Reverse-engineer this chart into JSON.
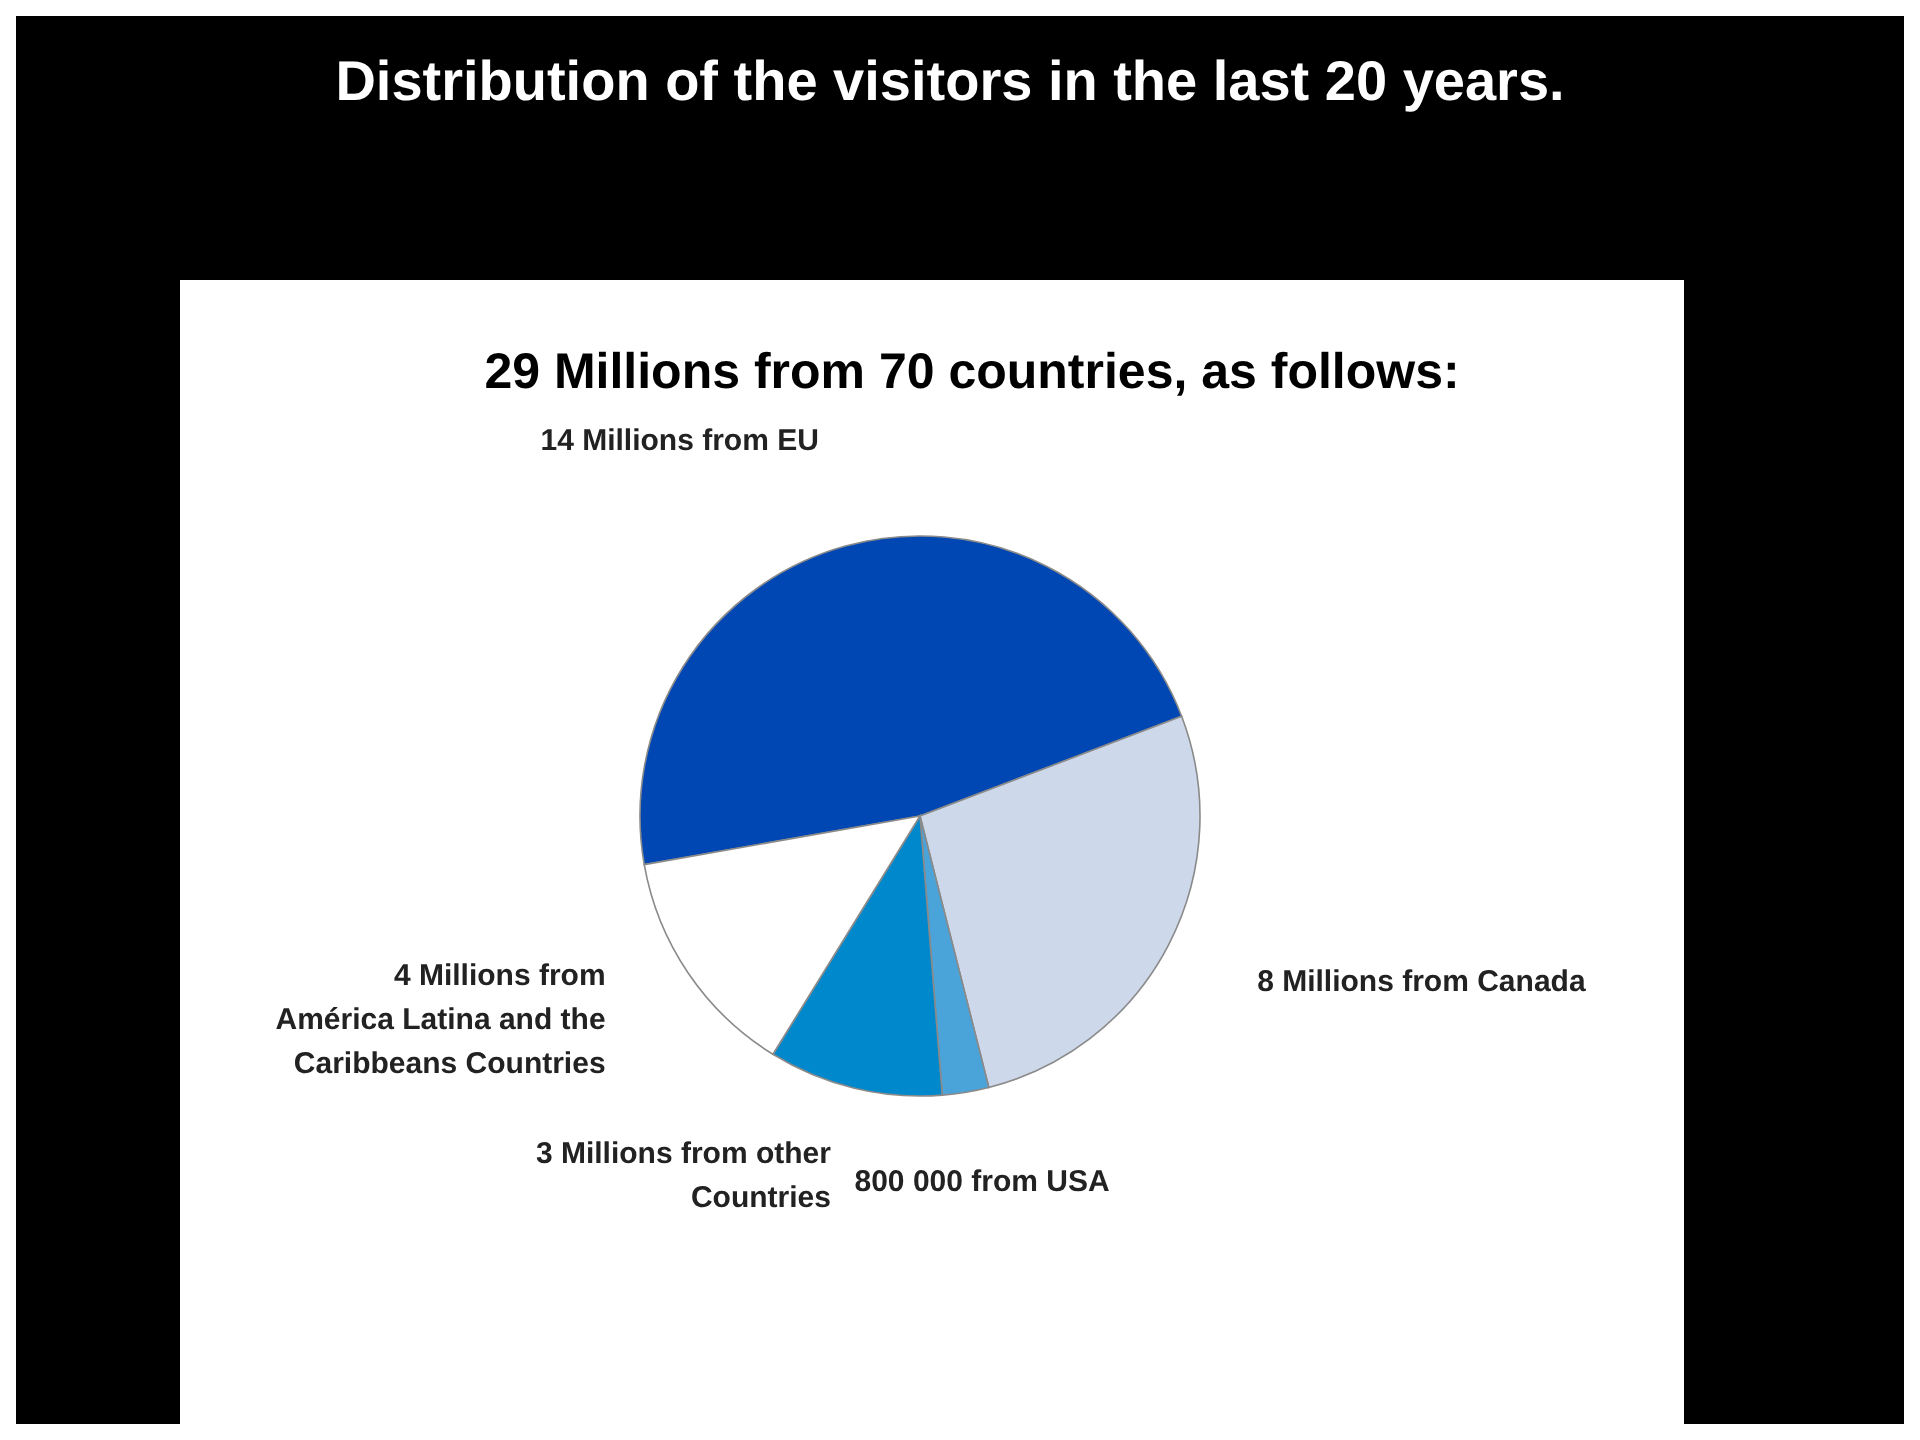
{
  "chart_data": {
    "type": "pie",
    "title": "Distribution of the visitors in the last 20 years.",
    "subtitle": "29 Millions from 70 countries, as follows:",
    "categories": [
      "14 Millions from  EU",
      "8 Millions from Canada",
      "800 000 from USA",
      "3 Millions from other Countries",
      "4 Millions  from América Latina and the Caribbeans Countries"
    ],
    "values": [
      14,
      8,
      0.8,
      3,
      4
    ],
    "colors": [
      "#0047b3",
      "#cdd8ea",
      "#4aa3d9",
      "#0088cc",
      "#ffffff"
    ]
  }
}
